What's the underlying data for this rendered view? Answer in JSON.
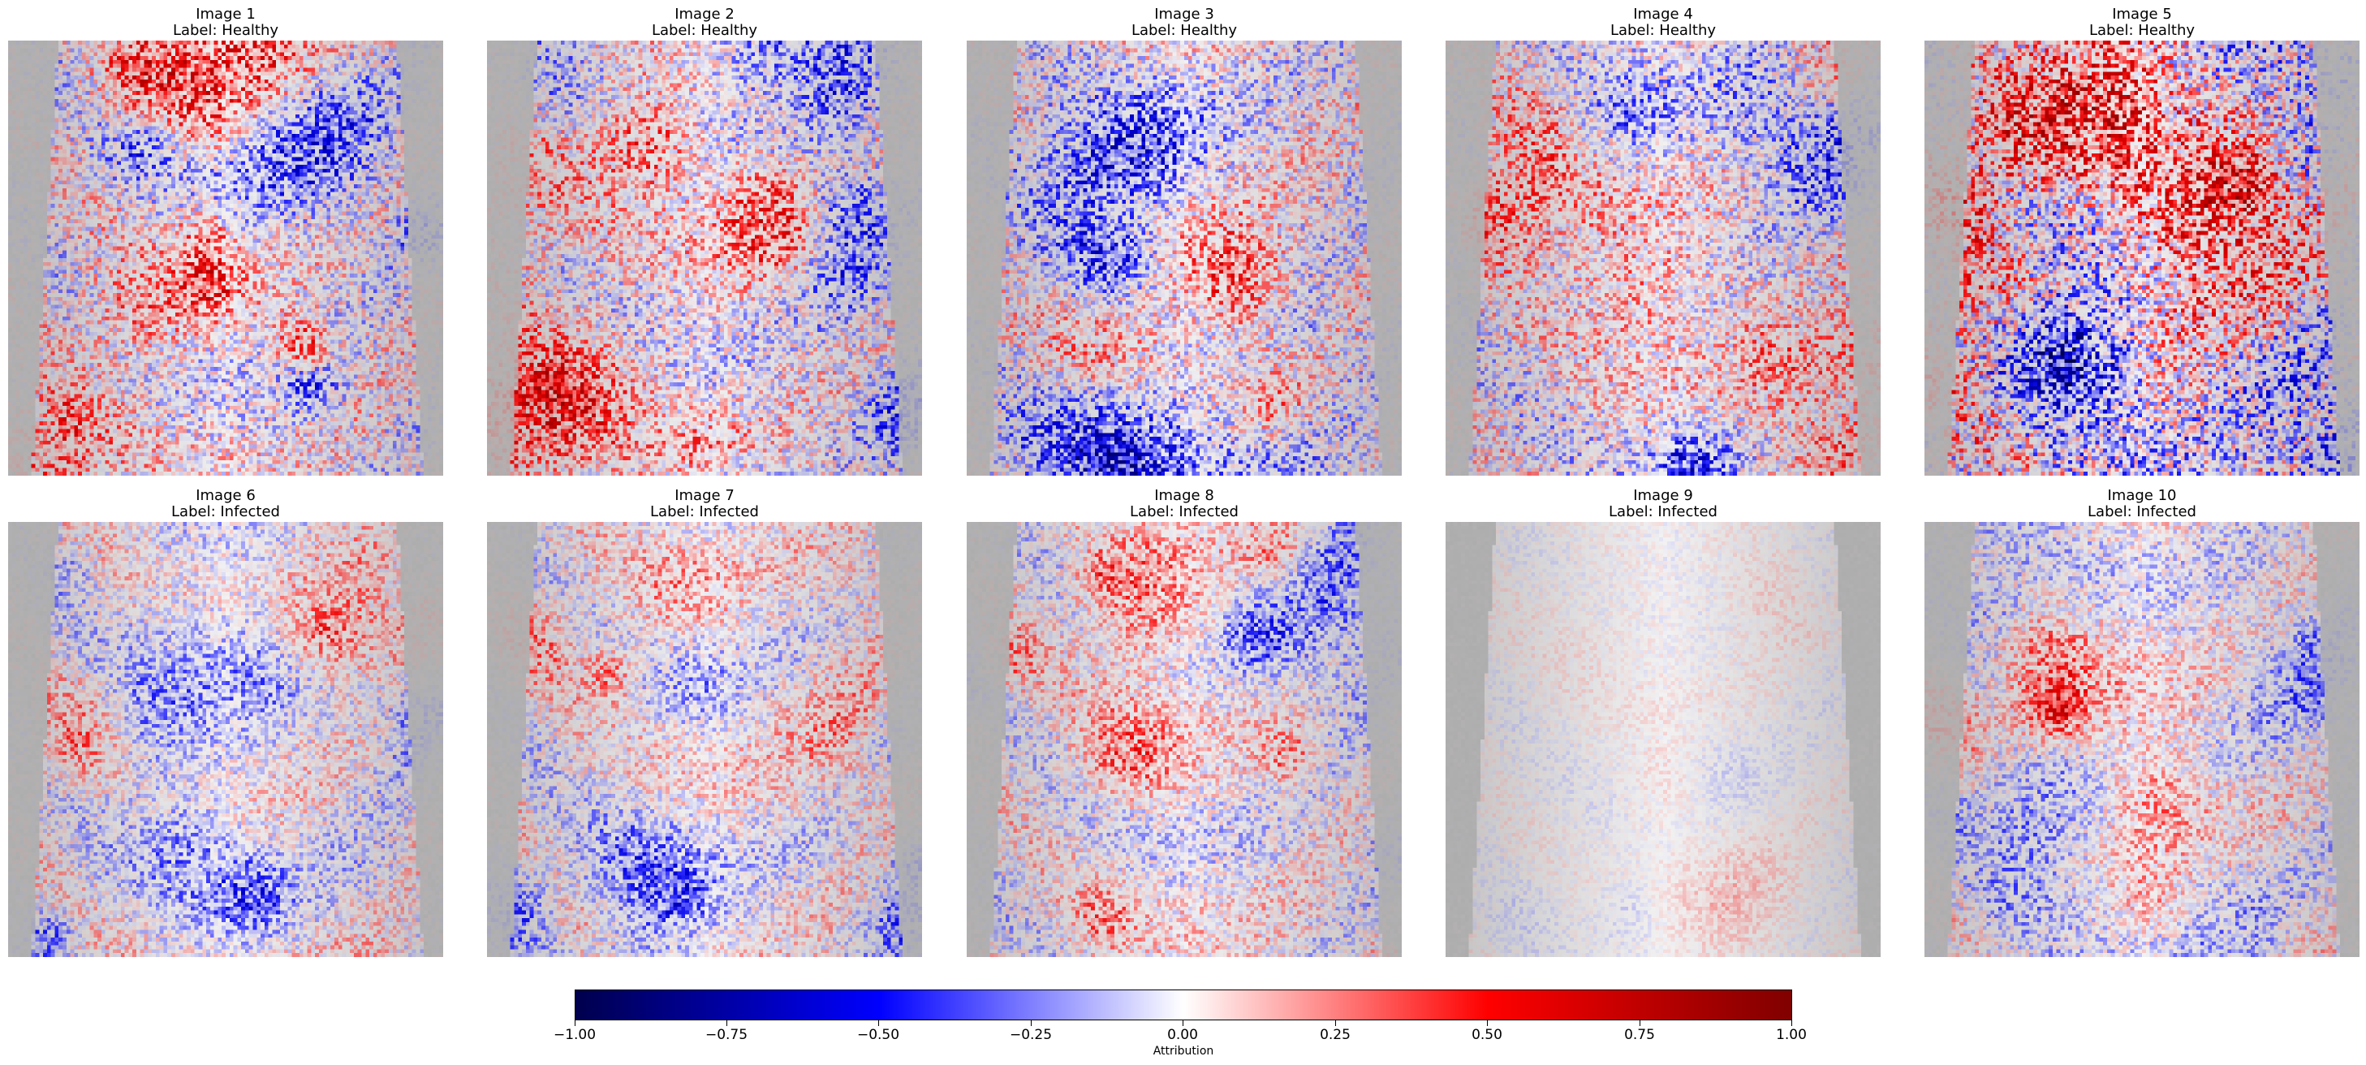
{
  "panels": [
    {
      "title": "Image 1",
      "label": "Label: Healthy"
    },
    {
      "title": "Image 2",
      "label": "Label: Healthy"
    },
    {
      "title": "Image 3",
      "label": "Label: Healthy"
    },
    {
      "title": "Image 4",
      "label": "Label: Healthy"
    },
    {
      "title": "Image 5",
      "label": "Label: Healthy"
    },
    {
      "title": "Image 6",
      "label": "Label: Infected"
    },
    {
      "title": "Image 7",
      "label": "Label: Infected"
    },
    {
      "title": "Image 8",
      "label": "Label: Infected"
    },
    {
      "title": "Image 9",
      "label": "Label: Infected"
    },
    {
      "title": "Image 10",
      "label": "Label: Infected"
    }
  ],
  "colorbar": {
    "label": "Attribution",
    "ticks": [
      "−1.00",
      "−0.75",
      "−0.50",
      "−0.25",
      "0.00",
      "0.25",
      "0.50",
      "0.75",
      "1.00"
    ],
    "colormap": [
      "#00004d",
      "#0000ff",
      "#ffffff",
      "#ff0000",
      "#800000"
    ],
    "range": [
      -1.0,
      1.0
    ]
  },
  "background_gray": "#adadad"
}
